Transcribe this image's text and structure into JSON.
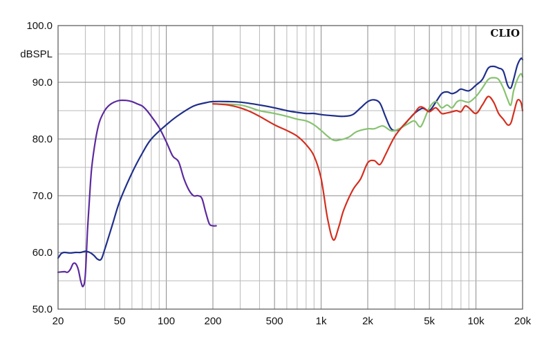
{
  "chart_data": {
    "type": "line",
    "title": "",
    "brand": "CLIO",
    "ylabel": "dBSPL",
    "xlabel": "",
    "x_scale": "log",
    "xlim": [
      20,
      20000
    ],
    "ylim": [
      50,
      100
    ],
    "grid": true,
    "y_ticks": [
      {
        "value": 100,
        "label": "100.0"
      },
      {
        "value": 90,
        "label": "90.0"
      },
      {
        "value": 80,
        "label": "80.0"
      },
      {
        "value": 70,
        "label": "70.0"
      },
      {
        "value": 60,
        "label": "60.0"
      },
      {
        "value": 50,
        "label": "50.0"
      }
    ],
    "x_ticks": [
      {
        "value": 20,
        "label": "20"
      },
      {
        "value": 50,
        "label": "50"
      },
      {
        "value": 100,
        "label": "100"
      },
      {
        "value": 200,
        "label": "200"
      },
      {
        "value": 500,
        "label": "500"
      },
      {
        "value": 1000,
        "label": "1k"
      },
      {
        "value": 2000,
        "label": "2k"
      },
      {
        "value": 5000,
        "label": "5k"
      },
      {
        "value": 10000,
        "label": "10k"
      },
      {
        "value": 20000,
        "label": "20k"
      }
    ],
    "series": [
      {
        "color": "#5b2a9e",
        "points": [
          [
            20,
            56.5
          ],
          [
            22,
            56.6
          ],
          [
            23,
            56.5
          ],
          [
            24,
            57
          ],
          [
            25,
            58
          ],
          [
            26,
            58
          ],
          [
            27,
            57
          ],
          [
            28,
            55
          ],
          [
            29,
            54
          ],
          [
            30,
            56
          ],
          [
            31,
            64
          ],
          [
            32,
            70
          ],
          [
            33,
            75
          ],
          [
            35,
            80
          ],
          [
            37,
            83
          ],
          [
            40,
            85
          ],
          [
            43,
            86
          ],
          [
            46,
            86.5
          ],
          [
            50,
            86.8
          ],
          [
            55,
            86.8
          ],
          [
            60,
            86.6
          ],
          [
            65,
            86.2
          ],
          [
            70,
            85.8
          ],
          [
            75,
            85
          ],
          [
            80,
            84
          ],
          [
            90,
            82
          ],
          [
            100,
            79.5
          ],
          [
            110,
            77
          ],
          [
            120,
            76
          ],
          [
            130,
            73
          ],
          [
            140,
            71
          ],
          [
            150,
            70
          ],
          [
            160,
            70
          ],
          [
            170,
            69.5
          ],
          [
            180,
            67
          ],
          [
            190,
            65
          ],
          [
            200,
            64.7
          ],
          [
            210,
            64.7
          ]
        ]
      },
      {
        "color": "#1f2f8a",
        "points": [
          [
            20,
            59
          ],
          [
            21,
            59.8
          ],
          [
            22,
            60
          ],
          [
            24,
            59.9
          ],
          [
            26,
            60
          ],
          [
            28,
            60
          ],
          [
            30,
            60.2
          ],
          [
            32,
            60
          ],
          [
            34,
            59.5
          ],
          [
            36,
            58.8
          ],
          [
            38,
            58.8
          ],
          [
            40,
            60.5
          ],
          [
            45,
            65
          ],
          [
            50,
            69
          ],
          [
            60,
            74
          ],
          [
            70,
            77.5
          ],
          [
            80,
            80
          ],
          [
            100,
            82.5
          ],
          [
            120,
            84.2
          ],
          [
            150,
            85.8
          ],
          [
            180,
            86.4
          ],
          [
            200,
            86.6
          ],
          [
            250,
            86.6
          ],
          [
            300,
            86.5
          ],
          [
            400,
            86
          ],
          [
            500,
            85.5
          ],
          [
            600,
            85
          ],
          [
            700,
            84.7
          ],
          [
            800,
            84.5
          ],
          [
            900,
            84.5
          ],
          [
            1000,
            84.3
          ],
          [
            1200,
            84.1
          ],
          [
            1400,
            84
          ],
          [
            1600,
            84.3
          ],
          [
            1800,
            85.5
          ],
          [
            2000,
            86.6
          ],
          [
            2200,
            86.9
          ],
          [
            2400,
            86.3
          ],
          [
            2600,
            84
          ],
          [
            2800,
            82
          ],
          [
            3000,
            81.5
          ],
          [
            3300,
            82
          ],
          [
            3700,
            83.5
          ],
          [
            4000,
            84.5
          ],
          [
            4500,
            85.4
          ],
          [
            5000,
            85
          ],
          [
            5500,
            86.5
          ],
          [
            6000,
            88
          ],
          [
            6500,
            88.3
          ],
          [
            7000,
            88
          ],
          [
            7500,
            88.3
          ],
          [
            8000,
            88.8
          ],
          [
            9000,
            88.5
          ],
          [
            10000,
            89.5
          ],
          [
            11000,
            90.5
          ],
          [
            12000,
            92.5
          ],
          [
            13000,
            92.8
          ],
          [
            14000,
            92.5
          ],
          [
            15000,
            92
          ],
          [
            16000,
            89.5
          ],
          [
            16800,
            89
          ],
          [
            17500,
            90.5
          ],
          [
            18500,
            93
          ],
          [
            19500,
            94.2
          ],
          [
            20000,
            94
          ]
        ]
      },
      {
        "color": "#86c26f",
        "points": [
          [
            200,
            86.2
          ],
          [
            300,
            86
          ],
          [
            400,
            85
          ],
          [
            500,
            84.5
          ],
          [
            600,
            84
          ],
          [
            700,
            83.5
          ],
          [
            800,
            83.2
          ],
          [
            900,
            82.5
          ],
          [
            1000,
            81.5
          ],
          [
            1100,
            80.5
          ],
          [
            1200,
            79.8
          ],
          [
            1300,
            79.8
          ],
          [
            1500,
            80.3
          ],
          [
            1700,
            81.3
          ],
          [
            2000,
            81.8
          ],
          [
            2200,
            81.8
          ],
          [
            2500,
            82.3
          ],
          [
            2800,
            81.5
          ],
          [
            3000,
            81.5
          ],
          [
            3300,
            82
          ],
          [
            3600,
            82.6
          ],
          [
            4000,
            83.2
          ],
          [
            4300,
            82.2
          ],
          [
            4500,
            82.6
          ],
          [
            5000,
            85.5
          ],
          [
            5500,
            86.6
          ],
          [
            6000,
            85.5
          ],
          [
            6500,
            86
          ],
          [
            7000,
            85.5
          ],
          [
            7500,
            86.5
          ],
          [
            8000,
            86.8
          ],
          [
            9000,
            86.5
          ],
          [
            10000,
            87.5
          ],
          [
            11000,
            89
          ],
          [
            12000,
            90.5
          ],
          [
            13000,
            90.8
          ],
          [
            14000,
            90.5
          ],
          [
            15000,
            89
          ],
          [
            16000,
            87
          ],
          [
            16800,
            86
          ],
          [
            17500,
            88.5
          ],
          [
            18500,
            90.5
          ],
          [
            19500,
            91.5
          ],
          [
            20000,
            91
          ]
        ]
      },
      {
        "color": "#d42e1e",
        "points": [
          [
            200,
            86.2
          ],
          [
            250,
            86
          ],
          [
            300,
            85.5
          ],
          [
            350,
            84.8
          ],
          [
            400,
            84
          ],
          [
            500,
            82.5
          ],
          [
            600,
            81.5
          ],
          [
            700,
            80.5
          ],
          [
            800,
            79
          ],
          [
            900,
            77
          ],
          [
            1000,
            73
          ],
          [
            1100,
            66
          ],
          [
            1200,
            62.2
          ],
          [
            1300,
            64.5
          ],
          [
            1400,
            67.5
          ],
          [
            1600,
            71
          ],
          [
            1800,
            73
          ],
          [
            2000,
            75.8
          ],
          [
            2200,
            76.2
          ],
          [
            2400,
            75.5
          ],
          [
            2600,
            77.2
          ],
          [
            2800,
            79
          ],
          [
            3000,
            80.5
          ],
          [
            3300,
            82
          ],
          [
            3700,
            83.5
          ],
          [
            4000,
            84.5
          ],
          [
            4300,
            85.6
          ],
          [
            4600,
            85.5
          ],
          [
            5000,
            84.8
          ],
          [
            5500,
            85.5
          ],
          [
            6000,
            84.5
          ],
          [
            6500,
            84.6
          ],
          [
            7000,
            84.8
          ],
          [
            7500,
            85
          ],
          [
            8000,
            84.8
          ],
          [
            8500,
            85.8
          ],
          [
            9000,
            85.5
          ],
          [
            10000,
            84.5
          ],
          [
            11000,
            86
          ],
          [
            12000,
            87.5
          ],
          [
            13000,
            86.5
          ],
          [
            14000,
            84.5
          ],
          [
            15000,
            83.5
          ],
          [
            16000,
            82.5
          ],
          [
            16800,
            82.8
          ],
          [
            17500,
            84.5
          ],
          [
            18500,
            86.8
          ],
          [
            19500,
            86.5
          ],
          [
            20000,
            85
          ]
        ]
      }
    ]
  }
}
